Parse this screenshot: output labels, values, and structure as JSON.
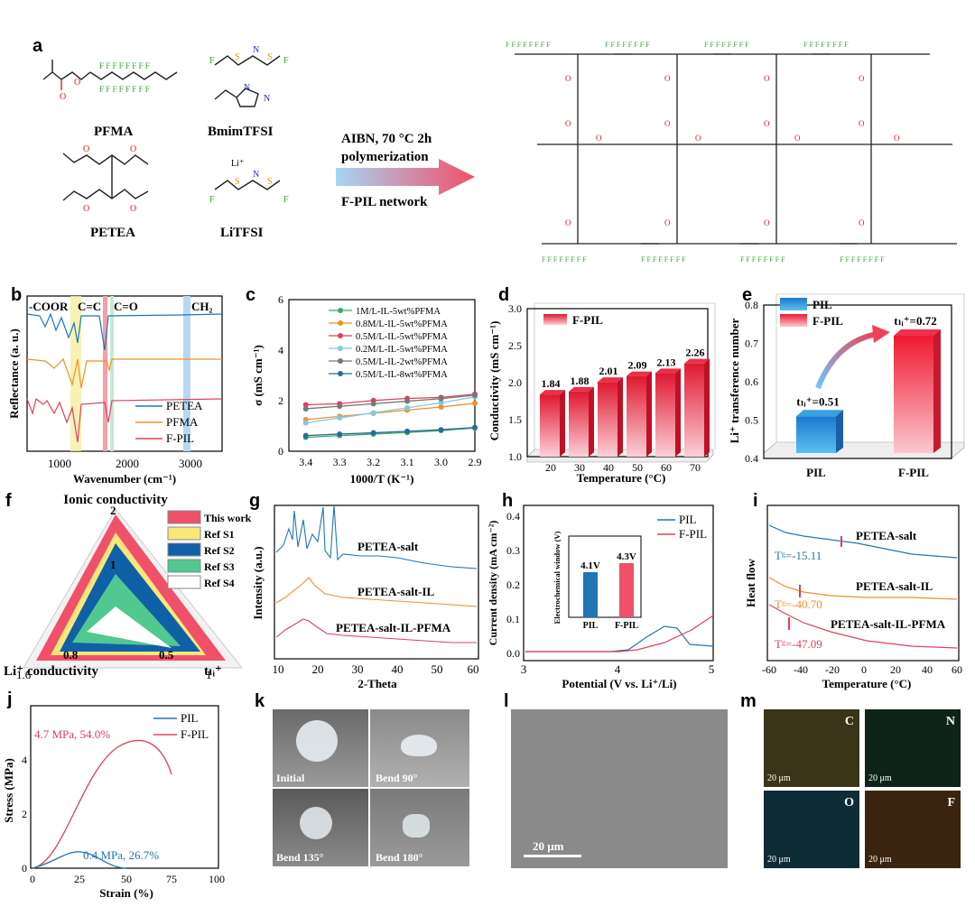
{
  "panel_labels": {
    "a": "a",
    "b": "b",
    "c": "c",
    "d": "d",
    "e": "e",
    "f": "f",
    "g": "g",
    "h": "h",
    "i": "i",
    "j": "j",
    "k": "k",
    "l": "l",
    "m": "m"
  },
  "panel_a": {
    "monomers": [
      "PFMA",
      "BmimTFSI",
      "PETEA",
      "LiTFSI"
    ],
    "li_plus": "Li⁺",
    "arrow_top": "AIBN, 70 °C 2h",
    "arrow_mid": "polymerization",
    "arrow_bottom": "F-PIL network",
    "colors": {
      "fluorine": "#3aa63a",
      "oxygen": "#e02020",
      "sulfur": "#c8a000",
      "nitrogen": "#2030d0",
      "arrow_start": "#9fd0f0",
      "arrow_end": "#f0506a"
    }
  },
  "panel_b": {
    "xlabel": "Wavenumber (cm⁻¹)",
    "ylabel": "Reflectance (a. u.)",
    "band_labels": [
      "-COOR",
      "C=C",
      "C=O",
      "CH₂"
    ],
    "xticks": [
      "1000",
      "2000",
      "3000"
    ],
    "legend": [
      "PETEA",
      "PFMA",
      "F-PIL"
    ],
    "colors": [
      "#1f77b4",
      "#f28e2b",
      "#e0405e"
    ]
  },
  "chart_c": {
    "type": "line",
    "xlabel": "1000/T (K⁻¹)",
    "ylabel": "σ (mS cm⁻¹)",
    "x": [
      3.4,
      3.3,
      3.2,
      3.1,
      3.0,
      2.9
    ],
    "xticks": [
      "3.4",
      "3.3",
      "3.2",
      "3.1",
      "3.0",
      "2.9"
    ],
    "yticks": [
      "0",
      "2",
      "4",
      "6"
    ],
    "xlim": [
      3.45,
      2.9
    ],
    "ylim": [
      0,
      6
    ],
    "series": [
      {
        "name": "1M/L-IL-5wt%PFMA",
        "color": "#3aa86a",
        "values": [
          0.55,
          0.62,
          0.68,
          0.74,
          0.82,
          0.92
        ]
      },
      {
        "name": "0.8M/L-IL-5wt%PFMA",
        "color": "#f28e2b",
        "values": [
          1.25,
          1.38,
          1.5,
          1.63,
          1.75,
          1.9
        ]
      },
      {
        "name": "0.5M/L-IL-5wt%PFMA",
        "color": "#e0405e",
        "values": [
          1.84,
          1.88,
          2.01,
          2.09,
          2.13,
          2.26
        ]
      },
      {
        "name": "0.2M/L-IL-5wt%PFMA",
        "color": "#7fc8e8",
        "values": [
          1.12,
          1.32,
          1.52,
          1.72,
          1.92,
          2.15
        ]
      },
      {
        "name": "0.5M/L-IL-2wt%PFMA",
        "color": "#777777",
        "values": [
          1.68,
          1.78,
          1.88,
          1.98,
          2.08,
          2.22
        ]
      },
      {
        "name": "0.5M/L-IL-8wt%PFMA",
        "color": "#2a6a9a",
        "values": [
          0.62,
          0.68,
          0.73,
          0.79,
          0.85,
          0.94
        ]
      }
    ]
  },
  "chart_d": {
    "type": "bar",
    "legend": "F-PIL",
    "xlabel": "Temperature (°C)",
    "ylabel": "Conductivity (mS cm⁻¹)",
    "categories": [
      "20",
      "30",
      "40",
      "50",
      "60",
      "70"
    ],
    "values": [
      1.84,
      1.88,
      2.01,
      2.09,
      2.13,
      2.26
    ],
    "labels": [
      "1.84",
      "1.88",
      "2.01",
      "2.09",
      "2.13",
      "2.26"
    ],
    "yticks": [
      "1.0",
      "1.5",
      "2.0",
      "2.5",
      "3.0"
    ],
    "ylim": [
      1.0,
      3.0
    ]
  },
  "chart_e": {
    "type": "bar",
    "legend": [
      "PIL",
      "F-PIL"
    ],
    "ylabel": "Li⁺ transference number",
    "categories": [
      "PIL",
      "F-PIL"
    ],
    "values": [
      0.51,
      0.72
    ],
    "labels": [
      "tₗᵢ⁺=0.51",
      "tₗᵢ⁺=0.72"
    ],
    "yticks": [
      "0.4",
      "0.5",
      "0.6",
      "0.7",
      "0.8"
    ],
    "ylim": [
      0.4,
      0.8
    ],
    "colors": [
      "#2a8fd8",
      "#f03050"
    ]
  },
  "chart_f": {
    "type": "radar",
    "axis_top": "Ionic conductivity",
    "axis_left": "Li⁺ conductivity",
    "axis_right": "tₗᵢ⁺",
    "tick_top": "2",
    "tick_mid": "1",
    "tick_left_in": "0.8",
    "tick_right_in": "0.5",
    "tick_left_out": "1.6",
    "tick_right_out": "1",
    "legend": [
      "This work",
      "Ref S1",
      "Ref S2",
      "Ref S3",
      "Ref S4"
    ],
    "colors": [
      "#f0506a",
      "#f8e878",
      "#1060a8",
      "#50c890",
      "#ffffff"
    ]
  },
  "panel_g": {
    "xlabel": "2-Theta",
    "ylabel": "Intensity (a.u.)",
    "xticks": [
      "10",
      "20",
      "30",
      "40",
      "50",
      "60"
    ],
    "curves": [
      "PETEA-salt",
      "PETEA-salt-IL",
      "PETEA-salt-IL-PFMA"
    ]
  },
  "panel_h": {
    "xlabel": "Potential (V vs. Li⁺/Li)",
    "ylabel": "Current density (mA cm⁻²)",
    "xticks": [
      "3",
      "4",
      "5"
    ],
    "yticks": [
      "0.0",
      "0.1",
      "0.2",
      "0.3",
      "0.4"
    ],
    "legend": [
      "PIL",
      "F-PIL"
    ],
    "inset": {
      "ylabel": "Electrochemical window (V)",
      "categories": [
        "PIL",
        "F-PIL"
      ],
      "values": [
        4.1,
        4.3
      ],
      "labels": [
        "4.1V",
        "4.3V"
      ]
    }
  },
  "panel_i": {
    "xlabel": "Temperature (°C)",
    "ylabel": "Heat flow",
    "xticks": [
      "-60",
      "-40",
      "-20",
      "0",
      "20",
      "40",
      "60"
    ],
    "curves": [
      "PETEA-salt",
      "PETEA-salt-IL",
      "PETEA-salt-IL-PFMA"
    ],
    "tg": [
      "Tᵍ=-15.11",
      "Tᵍ=-40.70",
      "Tᵍ=-47.09"
    ]
  },
  "panel_j": {
    "xlabel": "Strain (%)",
    "ylabel": "Stress (MPa)",
    "xticks": [
      "0",
      "25",
      "50",
      "75",
      "100"
    ],
    "yticks": [
      "0",
      "2",
      "4"
    ],
    "legend": [
      "PIL",
      "F-PIL"
    ],
    "ann_fpil": "4.7 MPa, 54.0%",
    "ann_pil": "0.4 MPa, 26.7%"
  },
  "panel_k": {
    "captions": [
      "Initial",
      "Bend 90°",
      "Bend 135°",
      "Bend 180°"
    ]
  },
  "panel_l": {
    "scale": "20 μm"
  },
  "panel_m": {
    "elements": [
      "C",
      "N",
      "O",
      "F"
    ],
    "scale": "20 μm"
  }
}
